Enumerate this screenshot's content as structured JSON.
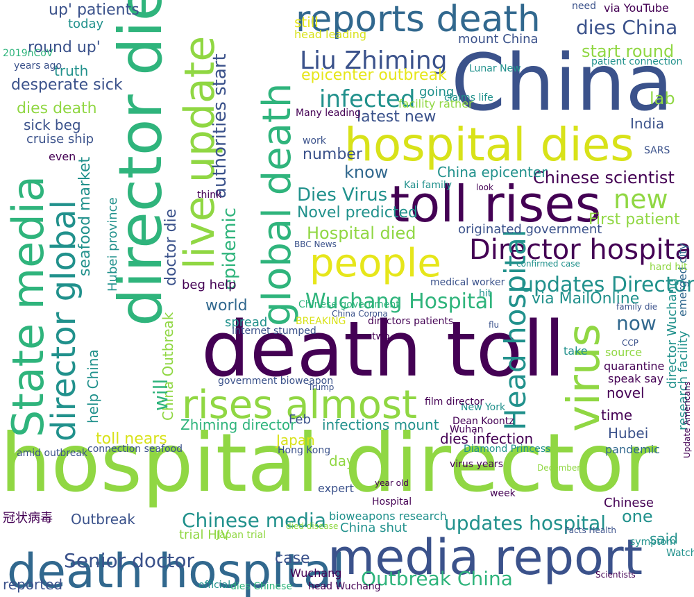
{
  "colors": {
    "purple": "#440154",
    "indigo": "#3b528b",
    "blue": "#31688e",
    "teal": "#21918c",
    "green": "#2fb47c",
    "lime": "#90d743",
    "yellow": "#d8e219",
    "bright_yellow": "#e6e61a"
  },
  "words": [
    {
      "text": "hospital director",
      "color": "lime"
    },
    {
      "text": "death toll",
      "color": "purple"
    },
    {
      "text": "China",
      "color": "indigo"
    },
    {
      "text": "toll rises",
      "color": "purple"
    },
    {
      "text": "hospital dies",
      "color": "yellow"
    },
    {
      "text": "reports death",
      "color": "blue"
    },
    {
      "text": "death hospital",
      "color": "blue"
    },
    {
      "text": "media report",
      "color": "indigo"
    },
    {
      "text": "rises almost",
      "color": "lime"
    },
    {
      "text": "people",
      "color": "bright_yellow"
    },
    {
      "text": "director die",
      "color": "green"
    },
    {
      "text": "State media",
      "color": "green"
    },
    {
      "text": "virus",
      "color": "lime"
    },
    {
      "text": "global death",
      "color": "green"
    },
    {
      "text": "live update",
      "color": "lime"
    },
    {
      "text": "director global",
      "color": "teal"
    },
    {
      "text": "Director hospital",
      "color": "purple"
    },
    {
      "text": "Liu Zhiming",
      "color": "indigo"
    },
    {
      "text": "Wuchang Hospital",
      "color": "green"
    },
    {
      "text": "Head hospital",
      "color": "teal"
    },
    {
      "text": "updates Director",
      "color": "teal"
    },
    {
      "text": "Chinese media",
      "color": "teal"
    },
    {
      "text": "updates hospital",
      "color": "teal"
    },
    {
      "text": "Outbreak China",
      "color": "green"
    },
    {
      "text": "Senior doctor",
      "color": "indigo"
    },
    {
      "text": "dies China",
      "color": "indigo"
    },
    {
      "text": "new",
      "color": "lime"
    },
    {
      "text": "infected",
      "color": "teal"
    },
    {
      "text": "start round",
      "color": "lime"
    },
    {
      "text": "epicenter outbreak",
      "color": "bright_yellow"
    },
    {
      "text": "authorities start",
      "color": "indigo"
    },
    {
      "text": "Chinese scientist",
      "color": "purple"
    },
    {
      "text": "China epicenter",
      "color": "teal"
    },
    {
      "text": "Dies Virus",
      "color": "teal"
    },
    {
      "text": "Novel predicted",
      "color": "teal"
    },
    {
      "text": "Hospital died",
      "color": "lime"
    },
    {
      "text": "epidemic",
      "color": "green"
    },
    {
      "text": "latest new",
      "color": "indigo"
    },
    {
      "text": "know",
      "color": "blue"
    },
    {
      "text": "number",
      "color": "indigo"
    },
    {
      "text": "First patient",
      "color": "lime"
    },
    {
      "text": "originated government",
      "color": "indigo"
    },
    {
      "text": "lab",
      "color": "lime"
    },
    {
      "text": "India",
      "color": "indigo"
    },
    {
      "text": "now",
      "color": "blue"
    },
    {
      "text": "via MailOnline",
      "color": "teal"
    },
    {
      "text": "world",
      "color": "blue"
    },
    {
      "text": "spread",
      "color": "teal"
    },
    {
      "text": "beg help",
      "color": "purple"
    },
    {
      "text": "seafood market",
      "color": "teal"
    },
    {
      "text": "Hubei province",
      "color": "teal"
    },
    {
      "text": "China Outbreak",
      "color": "lime"
    },
    {
      "text": "help China",
      "color": "teal"
    },
    {
      "text": "toll nears",
      "color": "yellow"
    },
    {
      "text": "Zhiming director",
      "color": "green"
    },
    {
      "text": "infections mount",
      "color": "teal"
    },
    {
      "text": "dies infection",
      "color": "purple"
    },
    {
      "text": "Hubei",
      "color": "indigo"
    },
    {
      "text": "pandemic",
      "color": "blue"
    },
    {
      "text": "time",
      "color": "purple"
    },
    {
      "text": "novel",
      "color": "purple"
    },
    {
      "text": "research facility",
      "color": "teal"
    },
    {
      "text": "director Wuchang",
      "color": "teal"
    },
    {
      "text": "emerged city",
      "color": "blue"
    },
    {
      "text": "Update Americans",
      "color": "purple"
    },
    {
      "text": "one",
      "color": "teal"
    },
    {
      "text": "said",
      "color": "teal"
    },
    {
      "text": "case",
      "color": "indigo"
    },
    {
      "text": "China shut",
      "color": "teal"
    },
    {
      "text": "bioweapons research",
      "color": "teal"
    },
    {
      "text": "Outbreak",
      "color": "indigo"
    },
    {
      "text": "冠状病毒",
      "color": "purple"
    },
    {
      "text": "amid outbreak",
      "color": "indigo"
    },
    {
      "text": "connection seafood",
      "color": "indigo"
    },
    {
      "text": "Japan",
      "color": "yellow"
    },
    {
      "text": "day",
      "color": "lime"
    },
    {
      "text": "Hong Kong",
      "color": "indigo"
    },
    {
      "text": "Diamond Princess",
      "color": "teal"
    },
    {
      "text": "up' patients",
      "color": "indigo"
    },
    {
      "text": "round up'",
      "color": "indigo"
    },
    {
      "text": "desperate sick",
      "color": "indigo"
    },
    {
      "text": "dies death",
      "color": "lime"
    },
    {
      "text": "sick beg",
      "color": "indigo"
    },
    {
      "text": "cruise ship",
      "color": "indigo"
    },
    {
      "text": "truth",
      "color": "teal"
    },
    {
      "text": "today",
      "color": "teal"
    },
    {
      "text": "via YouTube",
      "color": "purple"
    },
    {
      "text": "mount China",
      "color": "indigo"
    },
    {
      "text": "patient connection",
      "color": "teal"
    },
    {
      "text": "Lunar New",
      "color": "teal"
    },
    {
      "text": "going",
      "color": "teal"
    },
    {
      "text": "Many leading",
      "color": "purple"
    },
    {
      "text": "Kai family",
      "color": "teal"
    },
    {
      "text": "medical worker",
      "color": "indigo"
    },
    {
      "text": "Wuchang",
      "color": "purple"
    },
    {
      "text": "virus years",
      "color": "purple"
    },
    {
      "text": "December",
      "color": "lime"
    },
    {
      "text": "New York",
      "color": "teal"
    },
    {
      "text": "film director",
      "color": "purple"
    },
    {
      "text": "Dean Koontz",
      "color": "purple"
    },
    {
      "text": "doctor die",
      "color": "indigo"
    },
    {
      "text": "will",
      "color": "green"
    },
    {
      "text": "Facts Health",
      "color": "indigo"
    },
    {
      "text": "take",
      "color": "teal"
    },
    {
      "text": "quarantine",
      "color": "purple"
    },
    {
      "text": "speak say",
      "color": "purple"
    },
    {
      "text": "Chinese government",
      "color": "green"
    },
    {
      "text": "hit",
      "color": "teal"
    },
    {
      "text": "government bioweapon",
      "color": "indigo"
    },
    {
      "text": "Internet stumped",
      "color": "indigo"
    },
    {
      "text": "two",
      "color": "purple"
    },
    {
      "text": "directors patients",
      "color": "purple"
    },
    {
      "text": "China Corona",
      "color": "indigo"
    },
    {
      "text": "Hospital",
      "color": "purple"
    },
    {
      "text": "Trump",
      "color": "indigo"
    },
    {
      "text": "symptom",
      "color": "teal"
    },
    {
      "text": "Watch",
      "color": "teal"
    },
    {
      "text": "family die",
      "color": "indigo"
    },
    {
      "text": "confirmed case",
      "color": "teal"
    },
    {
      "text": "still",
      "color": "bright_yellow"
    },
    {
      "text": "head leading",
      "color": "yellow"
    },
    {
      "text": "facility rather",
      "color": "lime"
    },
    {
      "text": "claims life",
      "color": "teal"
    },
    {
      "text": "Feb",
      "color": "indigo"
    },
    {
      "text": "expert",
      "color": "indigo"
    },
    {
      "text": "official",
      "color": "teal"
    },
    {
      "text": "Chinese",
      "color": "purple"
    },
    {
      "text": "dies Chinese",
      "color": "green"
    },
    {
      "text": "head Wuchang",
      "color": "purple"
    },
    {
      "text": "BBC News",
      "color": "indigo"
    },
    {
      "text": "year old",
      "color": "purple"
    },
    {
      "text": "week",
      "color": "purple"
    },
    {
      "text": "died disease",
      "color": "lime"
    },
    {
      "text": "trial HIV",
      "color": "lime"
    },
    {
      "text": "Japan trial",
      "color": "lime"
    },
    {
      "text": "source",
      "color": "lime"
    },
    {
      "text": "BREAKING",
      "color": "yellow"
    },
    {
      "text": "reported",
      "color": "indigo"
    },
    {
      "text": "work",
      "color": "indigo"
    },
    {
      "text": "Wuhan",
      "color": "purple"
    },
    {
      "text": "look",
      "color": "purple"
    },
    {
      "text": "think",
      "color": "purple"
    },
    {
      "text": "even",
      "color": "purple"
    },
    {
      "text": "2019nCoV",
      "color": "green"
    },
    {
      "text": "years ago",
      "color": "indigo"
    },
    {
      "text": "Scientists",
      "color": "purple"
    },
    {
      "text": "hard hit",
      "color": "lime"
    },
    {
      "text": "CCP",
      "color": "indigo"
    },
    {
      "text": "flu",
      "color": "indigo"
    },
    {
      "text": "need",
      "color": "indigo"
    },
    {
      "text": "SARS",
      "color": "indigo"
    }
  ]
}
